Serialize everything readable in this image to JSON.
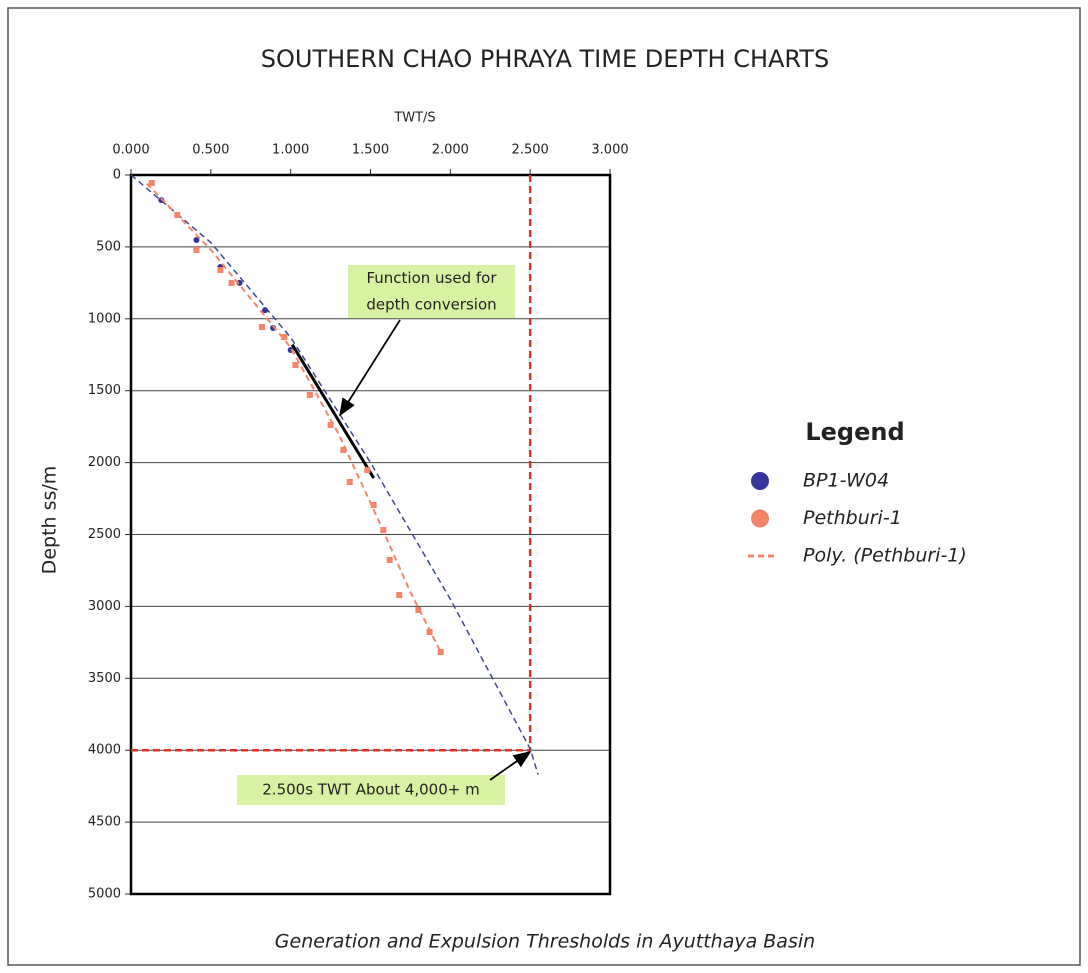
{
  "chart_data": {
    "type": "scatter",
    "title": "SOUTHERN CHAO PHRAYA TIME DEPTH CHARTS",
    "x_label": "TWT/S",
    "y_label": "Depth ss/m",
    "caption": "Generation and Expulsion Thresholds in Ayutthaya Basin",
    "legend_title": "Legend",
    "legend_position": "right",
    "xlim": [
      0,
      3
    ],
    "ylim": [
      0,
      5000
    ],
    "y_inverted": true,
    "x_axis_position": "top",
    "grid": true,
    "xticks": [
      {
        "value": 0,
        "label": "0.000"
      },
      {
        "value": 0.5,
        "label": "0.500"
      },
      {
        "value": 1,
        "label": "1.000"
      },
      {
        "value": 1.5,
        "label": "1.500"
      },
      {
        "value": 2,
        "label": "2.000"
      },
      {
        "value": 2.5,
        "label": "2.500"
      },
      {
        "value": 3,
        "label": "3.000"
      }
    ],
    "yticks": [
      0,
      500,
      1000,
      1500,
      2000,
      2500,
      3000,
      3500,
      4000,
      4500,
      5000
    ],
    "series": [
      {
        "name": "BP1-W04",
        "color": "#35359a",
        "marker": "circle",
        "x": [
          0.19,
          0.41,
          0.56,
          0.68,
          0.84,
          0.89,
          1.0
        ],
        "y": [
          175,
          452,
          640,
          750,
          940,
          1064,
          1217
        ]
      },
      {
        "name": "Pethburi-1",
        "color": "#f4846a",
        "marker": "square",
        "x": [
          0.13,
          0.29,
          0.41,
          0.56,
          0.63,
          0.82,
          0.96,
          1.03,
          1.12,
          1.25,
          1.33,
          1.37,
          1.48,
          1.52,
          1.58,
          1.62,
          1.68,
          1.8,
          1.87,
          1.94
        ],
        "y": [
          56,
          278,
          522,
          661,
          751,
          1057,
          1127,
          1321,
          1530,
          1739,
          1912,
          2135,
          2052,
          2295,
          2469,
          2677,
          2921,
          3025,
          3178,
          3317
        ]
      },
      {
        "name": "Poly. (Pethburi-1)",
        "color": "#f4846a",
        "line": "dashed",
        "x": [
          0.1,
          0.5,
          1.0,
          1.3,
          1.55,
          1.75,
          1.94
        ],
        "y": [
          60,
          520,
          1200,
          1800,
          2400,
          2900,
          3317
        ]
      }
    ],
    "curves": [
      {
        "color": "#3b4a8a",
        "line": "dashed",
        "x": [
          0,
          0.5,
          1.0,
          1.5,
          2.0,
          2.5,
          2.55
        ],
        "y": [
          0,
          470,
          1130,
          2000,
          2950,
          3990,
          4170
        ]
      },
      {
        "color": "#000000",
        "line": "solid",
        "x": [
          1.01,
          1.52
        ],
        "y": [
          1180,
          2107
        ]
      }
    ],
    "threshold_lines": {
      "color": "#e0302a",
      "x": 2.5,
      "y": 4000
    },
    "annotations": [
      {
        "text": [
          "Function used for",
          "depth conversion"
        ],
        "color": "#d8f2a4"
      },
      {
        "text": [
          "2.500s TWT About 4,000+ m"
        ],
        "color": "#d8f2a4"
      }
    ]
  }
}
